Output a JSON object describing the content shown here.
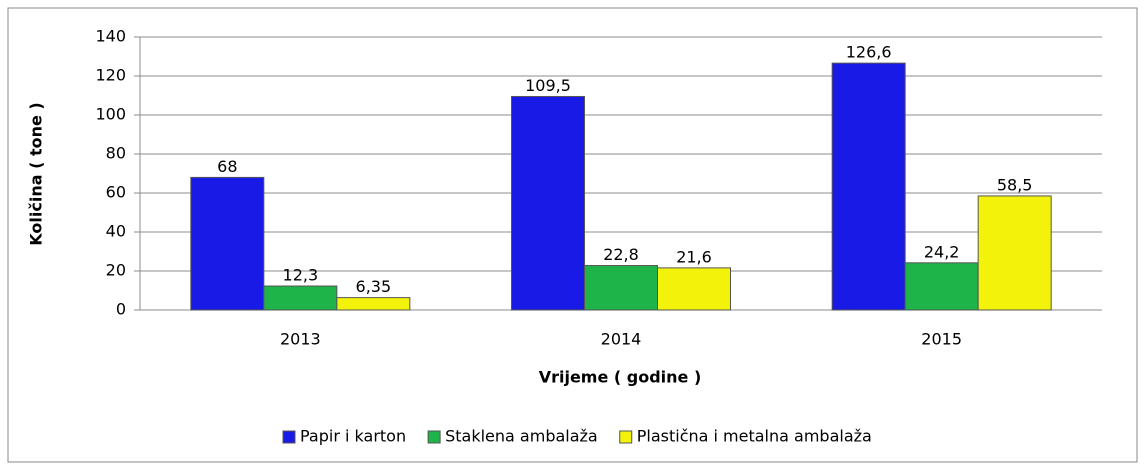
{
  "chart_data": {
    "type": "bar",
    "categories": [
      "2013",
      "2014",
      "2015"
    ],
    "series": [
      {
        "name": "Papir i karton",
        "color": "#1a1ae6",
        "values": [
          68,
          109.5,
          126.6
        ],
        "value_labels": [
          "68",
          "109,5",
          "126,6"
        ]
      },
      {
        "name": "Staklena ambalaža",
        "color": "#1fb44a",
        "values": [
          12.3,
          22.8,
          24.2
        ],
        "value_labels": [
          "12,3",
          "22,8",
          "24,2"
        ]
      },
      {
        "name": "Plastična i metalna ambalaža",
        "color": "#f2f20a",
        "values": [
          6.35,
          21.6,
          58.5
        ],
        "value_labels": [
          "6,35",
          "21,6",
          "58,5"
        ]
      }
    ],
    "y_label": "Količina ( tone )",
    "x_label": "Vrijeme ( godine )",
    "ylim": [
      0,
      140
    ],
    "yticks": [
      0,
      20,
      40,
      60,
      80,
      100,
      120,
      140
    ],
    "grid": true,
    "legend": "bottom"
  }
}
